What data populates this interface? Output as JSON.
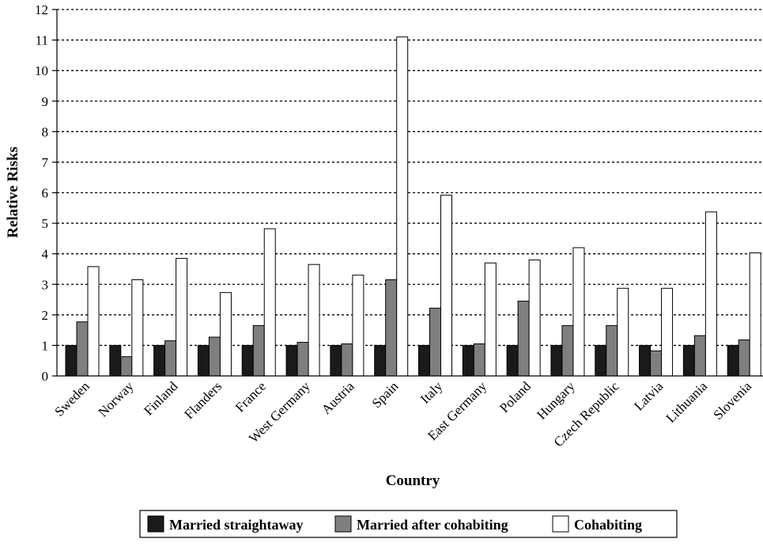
{
  "chart_data": {
    "type": "bar",
    "title": "",
    "xlabel": "Country",
    "ylabel": "Relative Risks",
    "ylim": [
      0,
      12
    ],
    "yticks": [
      0,
      1,
      2,
      3,
      4,
      5,
      6,
      7,
      8,
      9,
      10,
      11,
      12
    ],
    "grid": "horizontal dashed",
    "legend_position": "bottom",
    "categories": [
      "Sweden",
      "Norway",
      "Finland",
      "Flanders",
      "France",
      "West Germany",
      "Austria",
      "Spain",
      "Italy",
      "East Germany",
      "Poland",
      "Hungary",
      "Czech Republic",
      "Latvia",
      "Lithuania",
      "Slovenia"
    ],
    "series": [
      {
        "name": "Married straightaway",
        "color": "#1a1a1a",
        "values": [
          1,
          1,
          1,
          1,
          1,
          1,
          1,
          1,
          1,
          1,
          1,
          1,
          1,
          1,
          1,
          1
        ]
      },
      {
        "name": "Married after cohabiting",
        "color": "#7f7f7f",
        "values": [
          1.77,
          0.63,
          1.15,
          1.27,
          1.65,
          1.1,
          1.05,
          3.15,
          2.22,
          1.05,
          2.45,
          1.65,
          1.65,
          0.82,
          1.32,
          1.18
        ]
      },
      {
        "name": "Cohabiting",
        "color": "#ffffff",
        "values": [
          3.58,
          3.15,
          3.85,
          2.73,
          4.82,
          3.65,
          3.3,
          11.1,
          5.92,
          3.7,
          3.8,
          4.2,
          2.87,
          2.87,
          5.37,
          4.03
        ]
      }
    ]
  }
}
